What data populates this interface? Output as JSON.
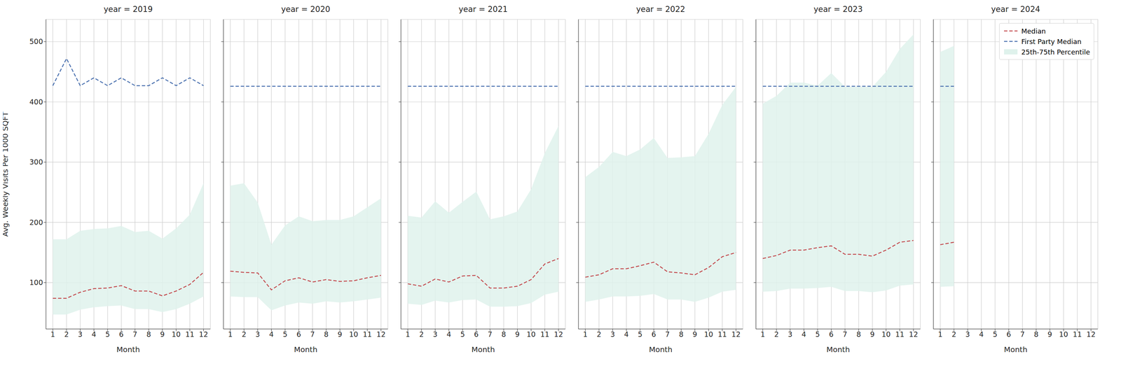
{
  "chart_data": [
    {
      "type": "line",
      "title": "year = 2019",
      "x_label": "Month",
      "y_label": "Avg. Weekly Visits Per 1000 SQFT",
      "x": [
        1,
        2,
        3,
        4,
        5,
        6,
        7,
        8,
        9,
        10,
        11,
        12
      ],
      "xlim": [
        0.5,
        12.5
      ],
      "xticks": [
        1,
        2,
        3,
        4,
        5,
        6,
        7,
        8,
        9,
        10,
        11,
        12
      ],
      "ylim": [
        23,
        537
      ],
      "yticks": [
        100,
        200,
        300,
        400,
        500
      ],
      "grid": true,
      "series": [
        {
          "name": "25th-75th Percentile",
          "type": "area",
          "color": "#dff2ec",
          "values": [
            [
              47,
              172
            ],
            [
              47,
              172
            ],
            [
              55,
              186
            ],
            [
              59,
              189
            ],
            [
              61,
              190
            ],
            [
              62,
              194
            ],
            [
              56,
              184
            ],
            [
              56,
              186
            ],
            [
              51,
              173
            ],
            [
              56,
              190
            ],
            [
              65,
              213
            ],
            [
              77,
              265
            ]
          ]
        },
        {
          "name": "Median",
          "type": "line",
          "color": "#c44e52",
          "line_style": "dashed",
          "values": [
            74,
            74,
            84,
            90,
            91,
            95,
            86,
            86,
            78,
            86,
            97,
            117
          ]
        },
        {
          "name": "First Party Median",
          "type": "line",
          "color": "#4c72b0",
          "line_style": "dashed",
          "values": [
            427,
            472,
            427,
            440,
            427,
            440,
            427,
            427,
            440,
            427,
            440,
            427
          ]
        }
      ]
    },
    {
      "type": "line",
      "title": "year = 2020",
      "x_label": "Month",
      "tick_labels": "x",
      "x": [
        1,
        2,
        3,
        4,
        5,
        6,
        7,
        8,
        9,
        10,
        11,
        12
      ],
      "xlim": [
        0.5,
        12.5
      ],
      "xticks": [
        1,
        2,
        3,
        4,
        5,
        6,
        7,
        8,
        9,
        10,
        11,
        12
      ],
      "ylim": [
        23,
        537
      ],
      "yticks": [
        100,
        200,
        300,
        400,
        500
      ],
      "grid": true,
      "series": [
        {
          "name": "25th-75th Percentile",
          "type": "area",
          "color": "#dff2ec",
          "values": [
            [
              77,
              261
            ],
            [
              76,
              265
            ],
            [
              76,
              233
            ],
            [
              54,
              163
            ],
            [
              62,
              195
            ],
            [
              67,
              210
            ],
            [
              65,
              202
            ],
            [
              69,
              204
            ],
            [
              67,
              204
            ],
            [
              69,
              210
            ],
            [
              72,
              225
            ],
            [
              75,
              240
            ]
          ]
        },
        {
          "name": "Median",
          "type": "line",
          "color": "#c44e52",
          "line_style": "dashed",
          "values": [
            119,
            117,
            116,
            88,
            103,
            108,
            101,
            105,
            102,
            103,
            108,
            112
          ]
        },
        {
          "name": "First Party Median",
          "type": "line",
          "color": "#4c72b0",
          "line_style": "dashed",
          "values": [
            426,
            426,
            426,
            426,
            426,
            426,
            426,
            426,
            426,
            426,
            426,
            426
          ]
        }
      ]
    },
    {
      "type": "line",
      "title": "year = 2021",
      "x_label": "Month",
      "tick_labels": "x",
      "x": [
        1,
        2,
        3,
        4,
        5,
        6,
        7,
        8,
        9,
        10,
        11,
        12
      ],
      "xlim": [
        0.5,
        12.5
      ],
      "xticks": [
        1,
        2,
        3,
        4,
        5,
        6,
        7,
        8,
        9,
        10,
        11,
        12
      ],
      "ylim": [
        23,
        537
      ],
      "yticks": [
        100,
        200,
        300,
        400,
        500
      ],
      "grid": true,
      "series": [
        {
          "name": "25th-75th Percentile",
          "type": "area",
          "color": "#dff2ec",
          "values": [
            [
              65,
              211
            ],
            [
              63,
              208
            ],
            [
              70,
              235
            ],
            [
              67,
              216
            ],
            [
              71,
              234
            ],
            [
              72,
              251
            ],
            [
              60,
              205
            ],
            [
              60,
              210
            ],
            [
              61,
              218
            ],
            [
              66,
              255
            ],
            [
              80,
              315
            ],
            [
              85,
              360
            ]
          ]
        },
        {
          "name": "Median",
          "type": "line",
          "color": "#c44e52",
          "line_style": "dashed",
          "values": [
            98,
            94,
            106,
            101,
            111,
            112,
            91,
            91,
            94,
            105,
            131,
            140
          ]
        },
        {
          "name": "First Party Median",
          "type": "line",
          "color": "#4c72b0",
          "line_style": "dashed",
          "values": [
            426,
            426,
            426,
            426,
            426,
            426,
            426,
            426,
            426,
            426,
            426,
            426
          ]
        }
      ]
    },
    {
      "type": "line",
      "title": "year = 2022",
      "x_label": "Month",
      "tick_labels": "x",
      "x": [
        1,
        2,
        3,
        4,
        5,
        6,
        7,
        8,
        9,
        10,
        11,
        12
      ],
      "xlim": [
        0.5,
        12.5
      ],
      "xticks": [
        1,
        2,
        3,
        4,
        5,
        6,
        7,
        8,
        9,
        10,
        11,
        12
      ],
      "ylim": [
        23,
        537
      ],
      "yticks": [
        100,
        200,
        300,
        400,
        500
      ],
      "grid": true,
      "series": [
        {
          "name": "25th-75th Percentile",
          "type": "area",
          "color": "#dff2ec",
          "values": [
            [
              68,
              275
            ],
            [
              72,
              292
            ],
            [
              77,
              317
            ],
            [
              77,
              310
            ],
            [
              78,
              321
            ],
            [
              81,
              340
            ],
            [
              72,
              307
            ],
            [
              72,
              308
            ],
            [
              68,
              310
            ],
            [
              75,
              347
            ],
            [
              85,
              395
            ],
            [
              88,
              425
            ]
          ]
        },
        {
          "name": "Median",
          "type": "line",
          "color": "#c44e52",
          "line_style": "dashed",
          "values": [
            109,
            113,
            123,
            123,
            128,
            134,
            118,
            116,
            113,
            125,
            143,
            150
          ]
        },
        {
          "name": "First Party Median",
          "type": "line",
          "color": "#4c72b0",
          "line_style": "dashed",
          "values": [
            426,
            426,
            426,
            426,
            426,
            426,
            426,
            426,
            426,
            426,
            426,
            426
          ]
        }
      ]
    },
    {
      "type": "line",
      "title": "year = 2023",
      "x_label": "Month",
      "tick_labels": "x",
      "x": [
        1,
        2,
        3,
        4,
        5,
        6,
        7,
        8,
        9,
        10,
        11,
        12
      ],
      "xlim": [
        0.5,
        12.5
      ],
      "xticks": [
        1,
        2,
        3,
        4,
        5,
        6,
        7,
        8,
        9,
        10,
        11,
        12
      ],
      "ylim": [
        23,
        537
      ],
      "yticks": [
        100,
        200,
        300,
        400,
        500
      ],
      "grid": true,
      "series": [
        {
          "name": "25th-75th Percentile",
          "type": "area",
          "color": "#dff2ec",
          "values": [
            [
              85,
              397
            ],
            [
              86,
              410
            ],
            [
              90,
              432
            ],
            [
              90,
              432
            ],
            [
              91,
              427
            ],
            [
              93,
              448
            ],
            [
              86,
              425
            ],
            [
              86,
              425
            ],
            [
              84,
              425
            ],
            [
              87,
              450
            ],
            [
              95,
              488
            ],
            [
              97,
              512
            ]
          ]
        },
        {
          "name": "Median",
          "type": "line",
          "color": "#c44e52",
          "line_style": "dashed",
          "values": [
            140,
            145,
            154,
            154,
            158,
            161,
            147,
            147,
            144,
            154,
            167,
            170
          ]
        },
        {
          "name": "First Party Median",
          "type": "line",
          "color": "#4c72b0",
          "line_style": "dashed",
          "values": [
            426,
            426,
            426,
            426,
            426,
            426,
            426,
            426,
            426,
            426,
            426,
            426
          ]
        }
      ]
    },
    {
      "type": "line",
      "title": "year = 2024",
      "x_label": "Month",
      "tick_labels": "x",
      "legend": "upper right",
      "x": [
        1,
        2,
        3,
        4,
        5,
        6,
        7,
        8,
        9,
        10,
        11,
        12
      ],
      "xlim": [
        0.5,
        12.5
      ],
      "xticks": [
        1,
        2,
        3,
        4,
        5,
        6,
        7,
        8,
        9,
        10,
        11,
        12
      ],
      "ylim": [
        23,
        537
      ],
      "yticks": [
        100,
        200,
        300,
        400,
        500
      ],
      "grid": true,
      "series": [
        {
          "name": "25th-75th Percentile",
          "type": "area",
          "color": "#dff2ec",
          "values": [
            [
              93,
              483
            ],
            [
              94,
              493
            ],
            null,
            null,
            null,
            null,
            null,
            null,
            null,
            null,
            null,
            null
          ]
        },
        {
          "name": "Median",
          "type": "line",
          "color": "#c44e52",
          "line_style": "dashed",
          "values": [
            163,
            167,
            null,
            null,
            null,
            null,
            null,
            null,
            null,
            null,
            null,
            null
          ]
        },
        {
          "name": "First Party Median",
          "type": "line",
          "color": "#4c72b0",
          "line_style": "dashed",
          "values": [
            426,
            426,
            null,
            null,
            null,
            null,
            null,
            null,
            null,
            null,
            null,
            null
          ]
        }
      ]
    }
  ]
}
